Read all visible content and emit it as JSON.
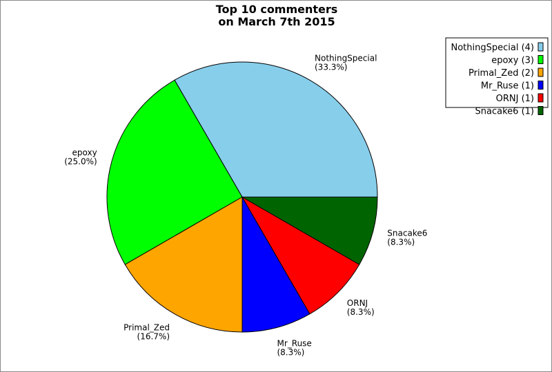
{
  "chart_data": {
    "type": "pie",
    "title": [
      "Top 10 commenters",
      "on March 7th 2015"
    ],
    "start_angle_deg": 0,
    "direction": "counterclockwise",
    "legend_position": "top-right",
    "slices": [
      {
        "name": "NothingSpecial",
        "value": 4,
        "percent": "33.3%",
        "legend": "NothingSpecial (4)",
        "color": "#87ceeb"
      },
      {
        "name": "epoxy",
        "value": 3,
        "percent": "25.0%",
        "legend": "epoxy (3)",
        "color": "#00ff00"
      },
      {
        "name": "Primal_Zed",
        "value": 2,
        "percent": "16.7%",
        "legend": "Primal_Zed (2)",
        "color": "#ffa500"
      },
      {
        "name": "Mr_Ruse",
        "value": 1,
        "percent": "8.3%",
        "legend": "Mr_Ruse (1)",
        "color": "#0000ff"
      },
      {
        "name": "ORNJ",
        "value": 1,
        "percent": "8.3%",
        "legend": "ORNJ (1)",
        "color": "#ff0000"
      },
      {
        "name": "Snacake6",
        "value": 1,
        "percent": "8.3%",
        "legend": "Snacake6 (1)",
        "color": "#006400"
      }
    ]
  }
}
